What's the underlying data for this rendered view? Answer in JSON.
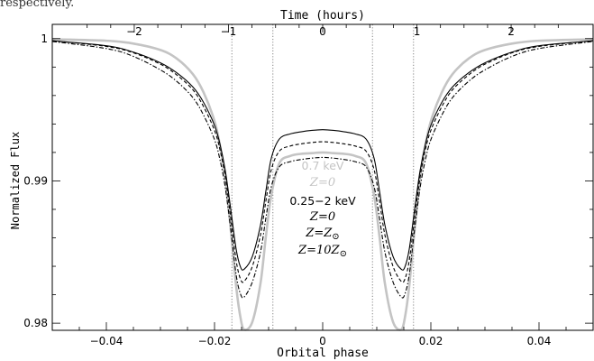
{
  "caption_fragment": "respectively.",
  "chart_data": {
    "type": "line",
    "title": "",
    "xlabel": "Orbital phase",
    "ylabel": "Normalized Flux",
    "x2label": "Time (hours)",
    "xlim": [
      -0.05,
      0.05
    ],
    "ylim": [
      0.9795,
      1.001
    ],
    "x2lim": [
      -2.87,
      2.87
    ],
    "xticks": [
      -0.04,
      -0.02,
      0,
      0.02,
      0.04
    ],
    "xtick_labels": [
      "−0.04",
      "−0.02",
      "0",
      "0.02",
      "0.04"
    ],
    "yticks": [
      0.98,
      0.99,
      1
    ],
    "ytick_labels": [
      "0.98",
      "0.99",
      "1"
    ],
    "x2ticks": [
      -2,
      -1,
      0,
      1,
      2
    ],
    "x2tick_labels": [
      "−2",
      "−1",
      "0",
      "1",
      "2"
    ],
    "contact_phases": [
      -0.0168,
      -0.0092,
      0.0092,
      0.0168
    ],
    "colors": {
      "grey": "#c4c4c4",
      "black": "#000000",
      "contacts": "#666666"
    },
    "series": [
      {
        "name": "0.7 keV Z=0",
        "color": "#c4c4c4",
        "style": "solid",
        "x": [
          -0.05,
          -0.04,
          -0.035,
          -0.03,
          -0.027,
          -0.024,
          -0.022,
          -0.02,
          -0.019,
          -0.018,
          -0.017,
          -0.016,
          -0.0152,
          -0.0145,
          -0.013,
          -0.0115,
          -0.0105,
          -0.0095,
          -0.008,
          -0.006,
          -0.004,
          -0.002,
          0,
          0.002,
          0.004,
          0.006,
          0.008,
          0.0095,
          0.0105,
          0.0115,
          0.013,
          0.0145,
          0.0152,
          0.016,
          0.017,
          0.018,
          0.019,
          0.02,
          0.022,
          0.024,
          0.027,
          0.03,
          0.035,
          0.04,
          0.05
        ],
        "y": [
          0.99995,
          0.99985,
          0.99965,
          0.9992,
          0.9986,
          0.9975,
          0.9962,
          0.9942,
          0.9925,
          0.9901,
          0.9866,
          0.9826,
          0.9804,
          0.97955,
          0.9801,
          0.9828,
          0.9861,
          0.989,
          0.99125,
          0.99175,
          0.9919,
          0.99195,
          0.992,
          0.99195,
          0.9919,
          0.99175,
          0.99125,
          0.989,
          0.9861,
          0.9828,
          0.9801,
          0.97955,
          0.9804,
          0.9826,
          0.9866,
          0.9901,
          0.9925,
          0.9942,
          0.9962,
          0.9975,
          0.9986,
          0.9992,
          0.99965,
          0.99985,
          0.99995
        ]
      },
      {
        "name": "0.25−2 keV Z=0",
        "color": "#000000",
        "style": "solid",
        "x": [
          -0.05,
          -0.04,
          -0.035,
          -0.03,
          -0.027,
          -0.024,
          -0.022,
          -0.02,
          -0.019,
          -0.018,
          -0.017,
          -0.016,
          -0.0152,
          -0.0145,
          -0.013,
          -0.0115,
          -0.0105,
          -0.0095,
          -0.008,
          -0.006,
          -0.004,
          -0.002,
          0,
          0.002,
          0.004,
          0.006,
          0.008,
          0.0095,
          0.0105,
          0.0115,
          0.013,
          0.0145,
          0.0152,
          0.016,
          0.017,
          0.018,
          0.019,
          0.02,
          0.022,
          0.024,
          0.027,
          0.03,
          0.035,
          0.04,
          0.05
        ],
        "y": [
          0.99985,
          0.9995,
          0.99905,
          0.9983,
          0.9976,
          0.9966,
          0.9955,
          0.9939,
          0.9926,
          0.9907,
          0.988,
          0.9852,
          0.98395,
          0.9838,
          0.9847,
          0.9869,
          0.9893,
          0.9916,
          0.99295,
          0.9933,
          0.99345,
          0.99355,
          0.9936,
          0.99355,
          0.99345,
          0.9933,
          0.99295,
          0.9916,
          0.9893,
          0.9869,
          0.9847,
          0.9838,
          0.98395,
          0.9852,
          0.988,
          0.9907,
          0.9926,
          0.9939,
          0.9955,
          0.9966,
          0.9976,
          0.9983,
          0.99905,
          0.9995,
          0.99985
        ]
      },
      {
        "name": "0.25−2 keV Z=Z⊙",
        "color": "#000000",
        "style": "dashed",
        "x": [
          -0.05,
          -0.04,
          -0.035,
          -0.03,
          -0.027,
          -0.024,
          -0.022,
          -0.02,
          -0.019,
          -0.018,
          -0.017,
          -0.016,
          -0.0152,
          -0.0145,
          -0.013,
          -0.0115,
          -0.0105,
          -0.0095,
          -0.008,
          -0.006,
          -0.004,
          -0.002,
          0,
          0.002,
          0.004,
          0.006,
          0.008,
          0.0095,
          0.0105,
          0.0115,
          0.013,
          0.0145,
          0.0152,
          0.016,
          0.017,
          0.018,
          0.019,
          0.02,
          0.022,
          0.024,
          0.027,
          0.03,
          0.035,
          0.04,
          0.05
        ],
        "y": [
          0.99985,
          0.99945,
          0.999,
          0.9982,
          0.99745,
          0.9964,
          0.9952,
          0.99355,
          0.9922,
          0.99025,
          0.9874,
          0.9844,
          0.9831,
          0.98295,
          0.984,
          0.9862,
          0.9886,
          0.9908,
          0.9921,
          0.99245,
          0.9926,
          0.9927,
          0.99275,
          0.9927,
          0.9926,
          0.99245,
          0.9921,
          0.9908,
          0.9886,
          0.9862,
          0.984,
          0.98295,
          0.9831,
          0.9844,
          0.9874,
          0.99025,
          0.9922,
          0.99355,
          0.9952,
          0.9964,
          0.99745,
          0.9982,
          0.999,
          0.99945,
          0.99985
        ]
      },
      {
        "name": "0.25−2 keV Z=10Z⊙",
        "color": "#000000",
        "style": "dashed",
        "x": [
          -0.05,
          -0.04,
          -0.035,
          -0.03,
          -0.027,
          -0.024,
          -0.022,
          -0.02,
          -0.019,
          -0.018,
          -0.017,
          -0.016,
          -0.0152,
          -0.0145,
          -0.013,
          -0.0115,
          -0.0105,
          -0.0095,
          -0.008,
          -0.006,
          -0.004,
          -0.002,
          0,
          0.002,
          0.004,
          0.006,
          0.008,
          0.0095,
          0.0105,
          0.0115,
          0.013,
          0.0145,
          0.0152,
          0.016,
          0.017,
          0.018,
          0.019,
          0.02,
          0.022,
          0.024,
          0.027,
          0.03,
          0.035,
          0.04,
          0.05
        ],
        "y": [
          0.9998,
          0.9993,
          0.99875,
          0.9978,
          0.997,
          0.99585,
          0.9946,
          0.9929,
          0.9915,
          0.9895,
          0.9866,
          0.9834,
          0.98205,
          0.98185,
          0.9829,
          0.985,
          0.9874,
          0.9896,
          0.991,
          0.99135,
          0.9915,
          0.9916,
          0.99165,
          0.9916,
          0.9915,
          0.99135,
          0.991,
          0.9896,
          0.9874,
          0.985,
          0.9829,
          0.98185,
          0.98205,
          0.9834,
          0.9866,
          0.9895,
          0.9915,
          0.9929,
          0.9946,
          0.99585,
          0.997,
          0.9978,
          0.99875,
          0.9993,
          0.9998
        ]
      }
    ],
    "legend": {
      "group1": [
        {
          "plain": "0.7 keV",
          "color": "#c4c4c4"
        },
        {
          "italic": "Z",
          "rest": "=0",
          "color": "#c4c4c4"
        }
      ],
      "group2": [
        {
          "plain": "0.25−2 keV",
          "color": "#000000"
        },
        {
          "italic": "Z",
          "rest": "=0",
          "color": "#000000"
        },
        {
          "italic": "Z",
          "rest": "=Z",
          "sub": "⊙",
          "color": "#000000"
        },
        {
          "italic": "Z",
          "rest": "=10Z",
          "sub": "⊙",
          "color": "#000000"
        }
      ]
    },
    "grid": false,
    "legend_placement": "center"
  }
}
